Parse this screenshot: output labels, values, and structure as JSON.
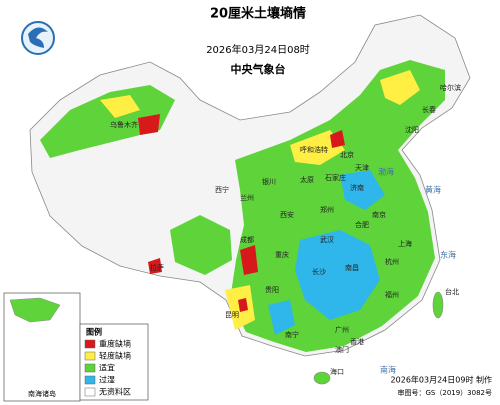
{
  "header": {
    "title": "20厘米土壤墒情",
    "time": "2026年03月24日08时",
    "issuer": "中央气象台"
  },
  "legend": {
    "title": "图例",
    "items": [
      "重度缺墒",
      "轻度缺墒",
      "适宜",
      "过湿",
      "无资料区"
    ]
  },
  "inset": {
    "label": "南海诸岛"
  },
  "places": [
    "哈尔滨",
    "长春",
    "沈阳",
    "北京",
    "天津",
    "石家庄",
    "太原",
    "呼和浩特",
    "济南",
    "郑州",
    "西安",
    "兰州",
    "西宁",
    "银川",
    "乌鲁木齐",
    "拉萨",
    "成都",
    "重庆",
    "武汉",
    "合肥",
    "南京",
    "上海",
    "杭州",
    "长沙",
    "南昌",
    "福州",
    "贵阳",
    "昆明",
    "南宁",
    "广州",
    "香港",
    "澳门",
    "台北",
    "海口"
  ],
  "seas": [
    "渤海",
    "黄海",
    "东海",
    "南海"
  ],
  "footer": {
    "made": "2026年03月24日09时 制作",
    "approval": "审图号：GS（2019）3082号"
  }
}
